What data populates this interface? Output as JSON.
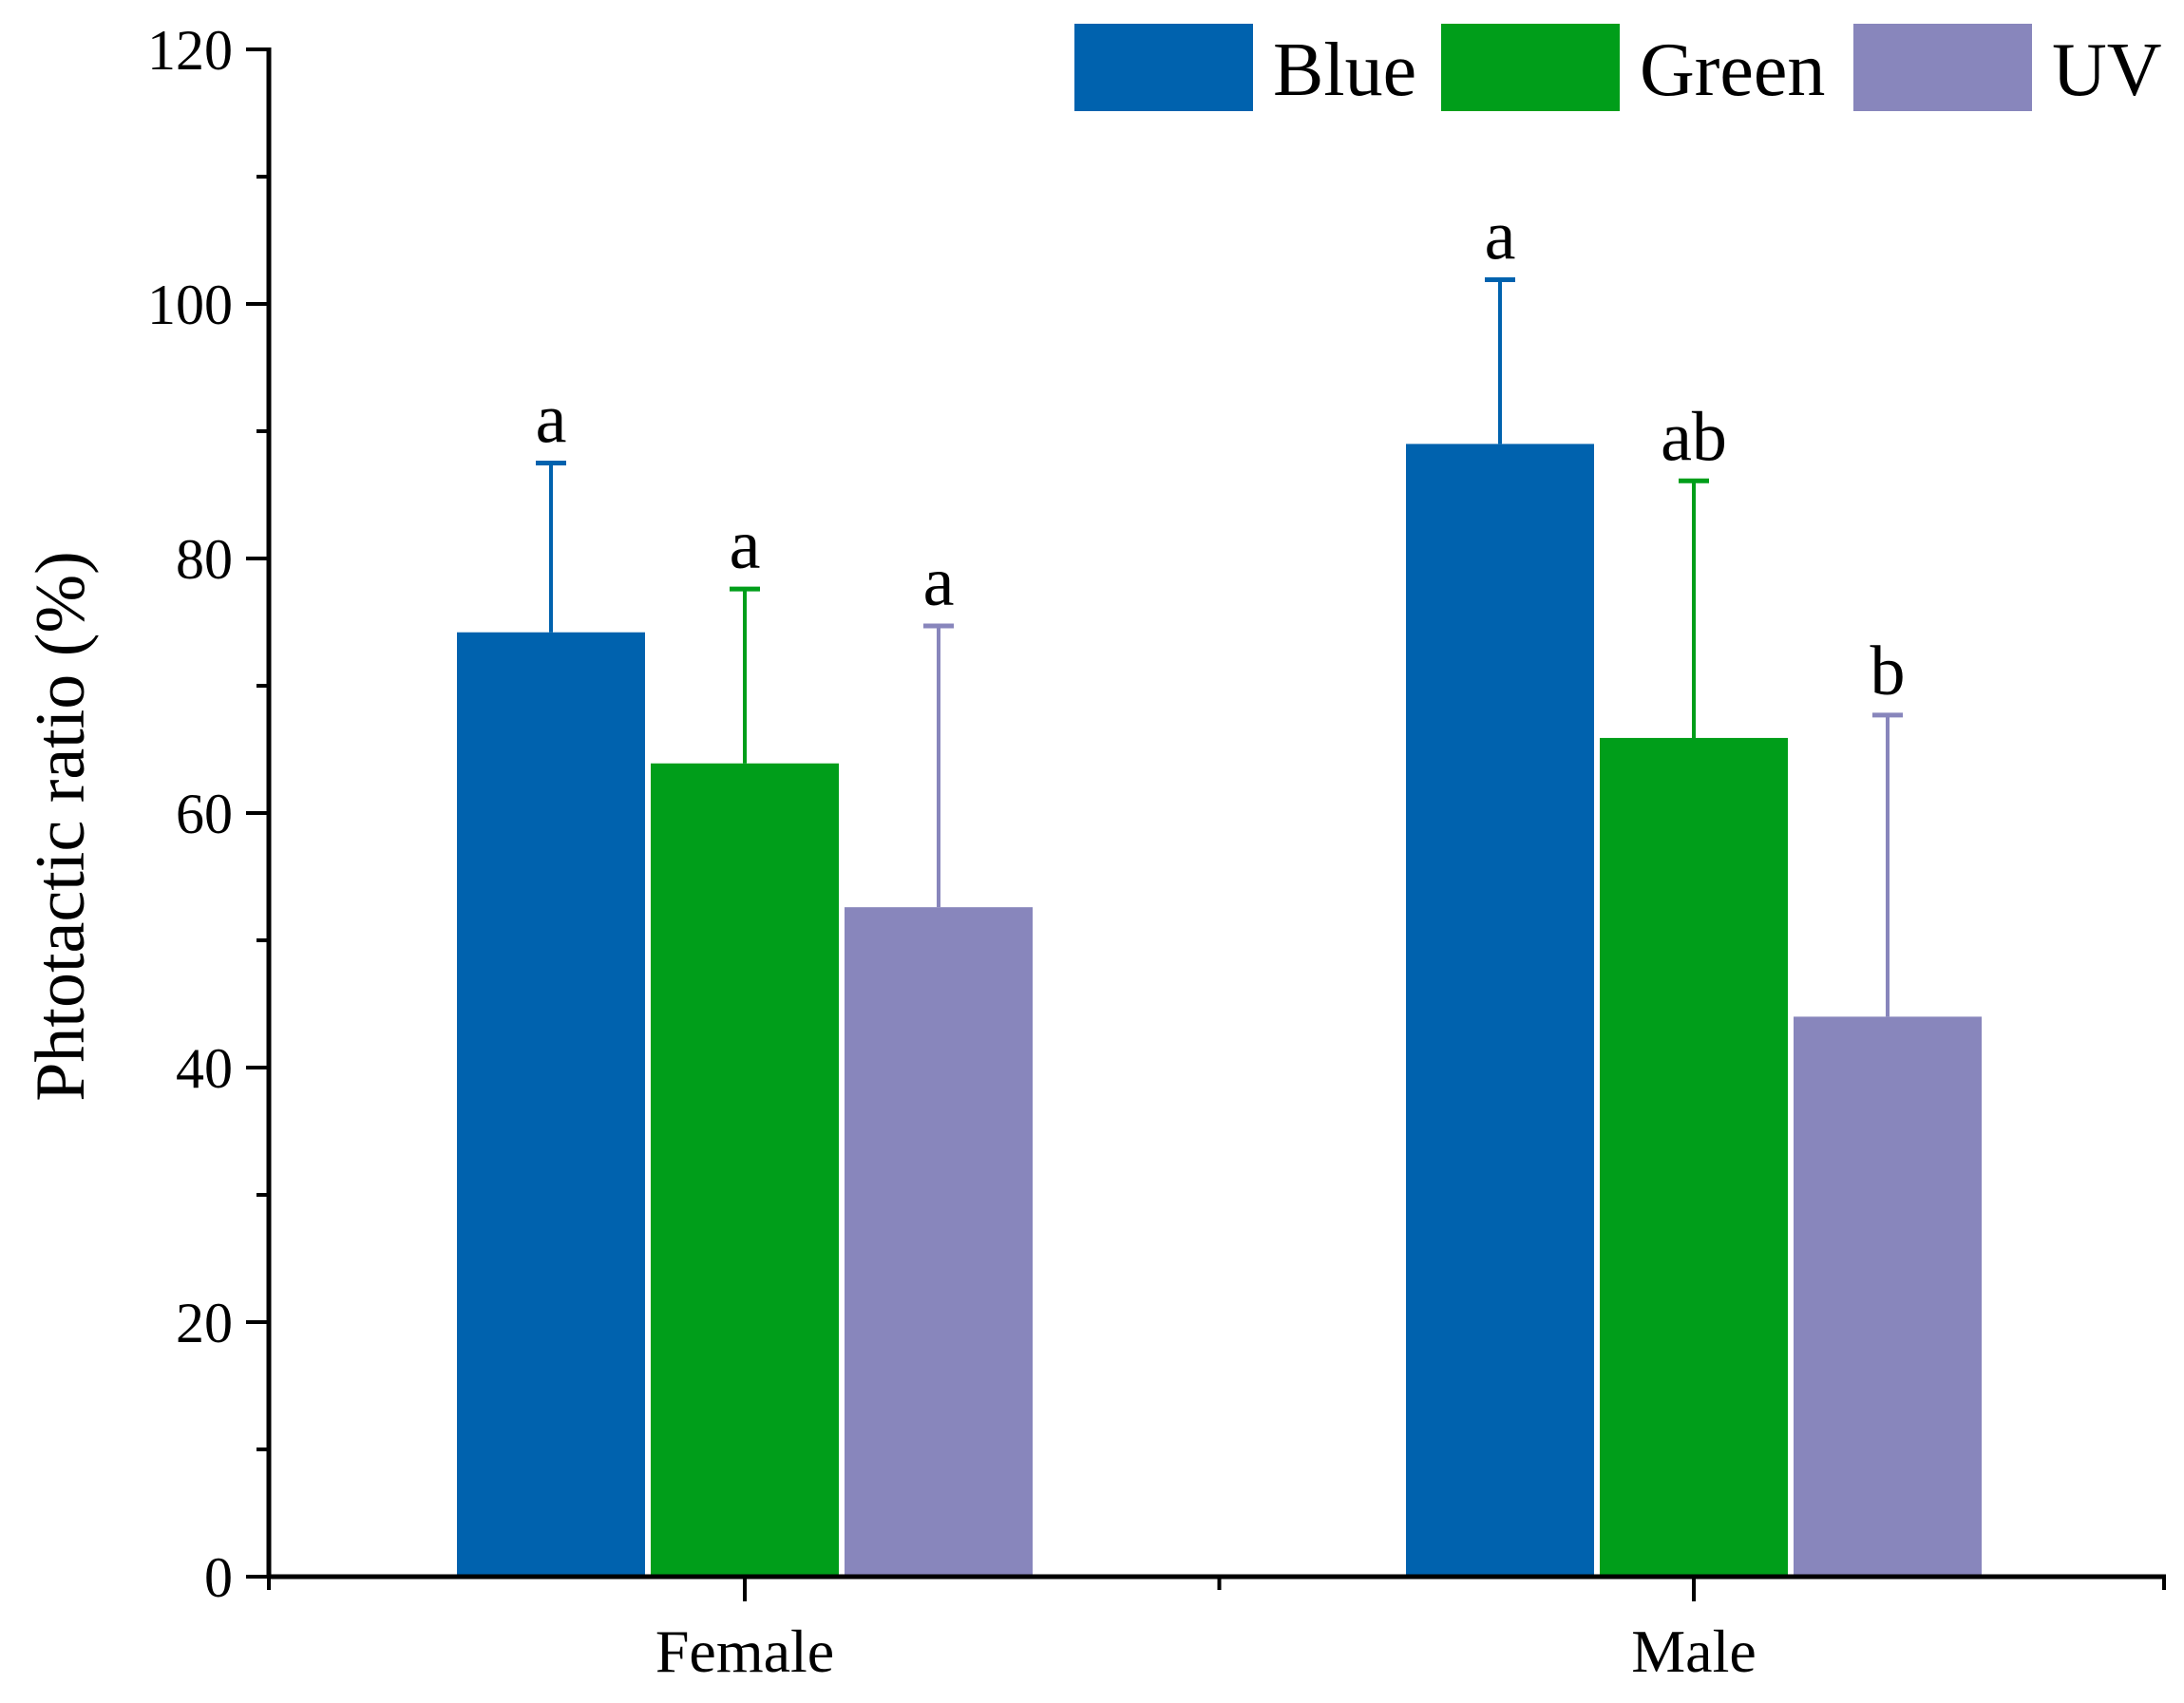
{
  "chart_data": {
    "type": "bar",
    "title": "",
    "xlabel": "",
    "ylabel": "Phtotactic ratio (%)",
    "ylim": [
      0,
      120
    ],
    "yticks": [
      0,
      20,
      40,
      60,
      80,
      100,
      120
    ],
    "yticks_minor_step": 10,
    "categories": [
      "Female",
      "Male"
    ],
    "series": [
      {
        "name": "Blue",
        "color": "#0062AE",
        "values": [
          74.2,
          89.0
        ],
        "errors": [
          13.3,
          12.9
        ],
        "sig_labels": [
          "a",
          "a"
        ]
      },
      {
        "name": "Green",
        "color": "#009E1A",
        "values": [
          63.9,
          65.9
        ],
        "errors": [
          13.7,
          20.2
        ],
        "sig_labels": [
          "a",
          "ab"
        ]
      },
      {
        "name": "UV",
        "color": "#8886BC",
        "values": [
          52.6,
          44.0
        ],
        "errors": [
          22.1,
          23.7
        ],
        "sig_labels": [
          "a",
          "b"
        ]
      }
    ],
    "legend": "top-right",
    "grid": false
  }
}
